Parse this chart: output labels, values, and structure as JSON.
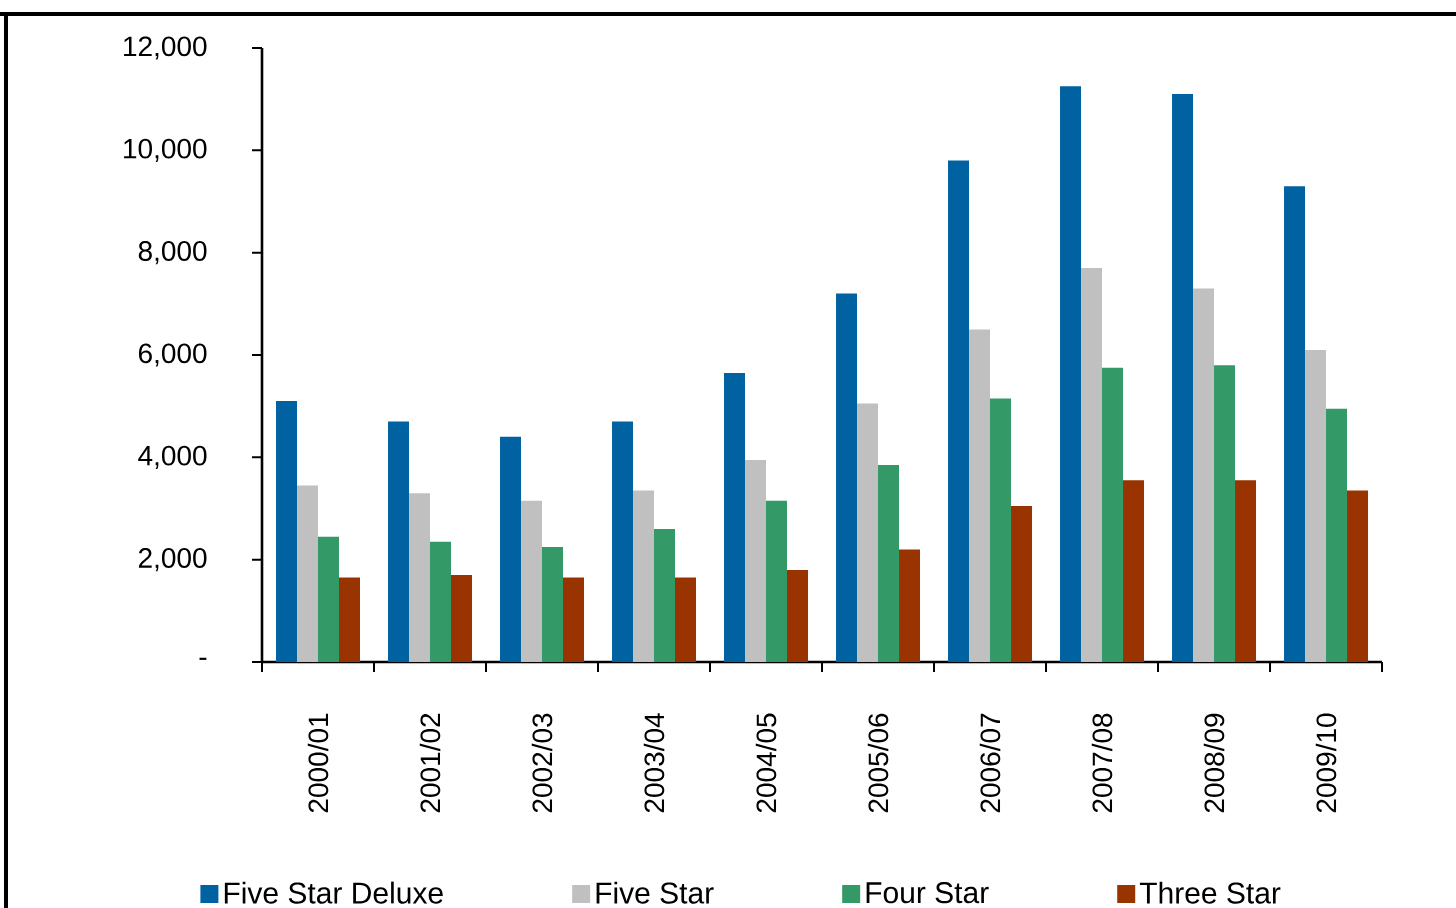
{
  "chart_data": {
    "type": "bar",
    "categories": [
      "2000/01",
      "2001/02",
      "2002/03",
      "2003/04",
      "2004/05",
      "2005/06",
      "2006/07",
      "2007/08",
      "2008/09",
      "2009/10"
    ],
    "series": [
      {
        "name": "Five Star Deluxe",
        "color": "#0062a0",
        "values": [
          5100,
          4700,
          4400,
          4700,
          5650,
          7200,
          9800,
          11250,
          11100,
          9300
        ]
      },
      {
        "name": "Five Star",
        "color": "#c0c0c0",
        "values": [
          3450,
          3300,
          3150,
          3350,
          3950,
          5050,
          6500,
          7700,
          7300,
          6100
        ]
      },
      {
        "name": "Four Star",
        "color": "#339966",
        "values": [
          2450,
          2350,
          2250,
          2600,
          3150,
          3850,
          5150,
          5750,
          5800,
          4950
        ]
      },
      {
        "name": "Three Star",
        "color": "#993300",
        "values": [
          1650,
          1700,
          1650,
          1650,
          1800,
          2200,
          3050,
          3550,
          3550,
          3350
        ]
      }
    ],
    "ylim": [
      0,
      12000
    ],
    "yticks": [
      {
        "value": 0,
        "label": "-"
      },
      {
        "value": 2000,
        "label": "2,000"
      },
      {
        "value": 4000,
        "label": "4,000"
      },
      {
        "value": 6000,
        "label": "6,000"
      },
      {
        "value": 8000,
        "label": "8,000"
      },
      {
        "value": 10000,
        "label": "10,000"
      },
      {
        "value": 12000,
        "label": "12,000"
      }
    ],
    "legend": "bottom"
  }
}
